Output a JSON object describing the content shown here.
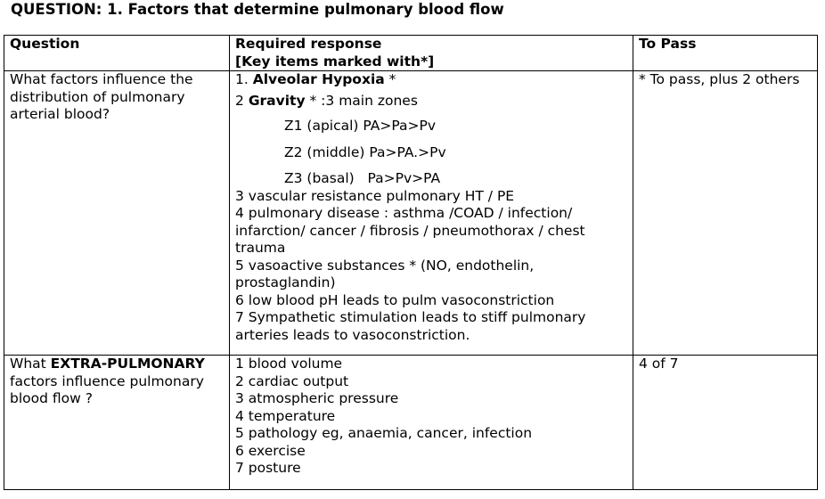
{
  "title": "QUESTION: 1. Factors that determine pulmonary blood flow",
  "headers": {
    "question": "Question",
    "response_line1": "Required response",
    "response_line2": "[Key items marked with*]",
    "topass": "To Pass"
  },
  "row1": {
    "question": "What factors influence the distribution of pulmonary arterial blood?",
    "item1_num": "1.",
    "item1_bold": "Alveolar Hypoxia",
    "item1_rest": " *",
    "item2_num": "2",
    "item2_bold": "Gravity",
    "item2_rest": " * :3 main zones",
    "zone1": "Z1 (apical) PA>Pa>Pv",
    "zone2": "Z2 (middle) Pa>PA.>Pv",
    "zone3": "Z3 (basal)   Pa>Pv>PA",
    "item3": "3 vascular resistance pulmonary HT / PE",
    "item4": "4 pulmonary disease : asthma /COAD / infection/ infarction/ cancer / fibrosis / pneumothorax / chest trauma",
    "item5": "5 vasoactive substances * (NO, endothelin, prostaglandin)",
    "item6": "6 low blood pH leads to pulm vasoconstriction",
    "item7": "7 Sympathetic stimulation leads to stiff pulmonary arteries leads to vasoconstriction.",
    "topass": "* To pass, plus 2 others"
  },
  "row2": {
    "q_prefix": "What ",
    "q_bold": "EXTRA-PULMONARY",
    "q_suffix": " factors influence pulmonary blood flow ?",
    "items": [
      "1 blood volume",
      "2 cardiac output",
      "3 atmospheric pressure",
      "4 temperature",
      "5 pathology eg, anaemia, cancer, infection",
      "6 exercise",
      "7 posture"
    ],
    "topass": "4 of 7"
  }
}
